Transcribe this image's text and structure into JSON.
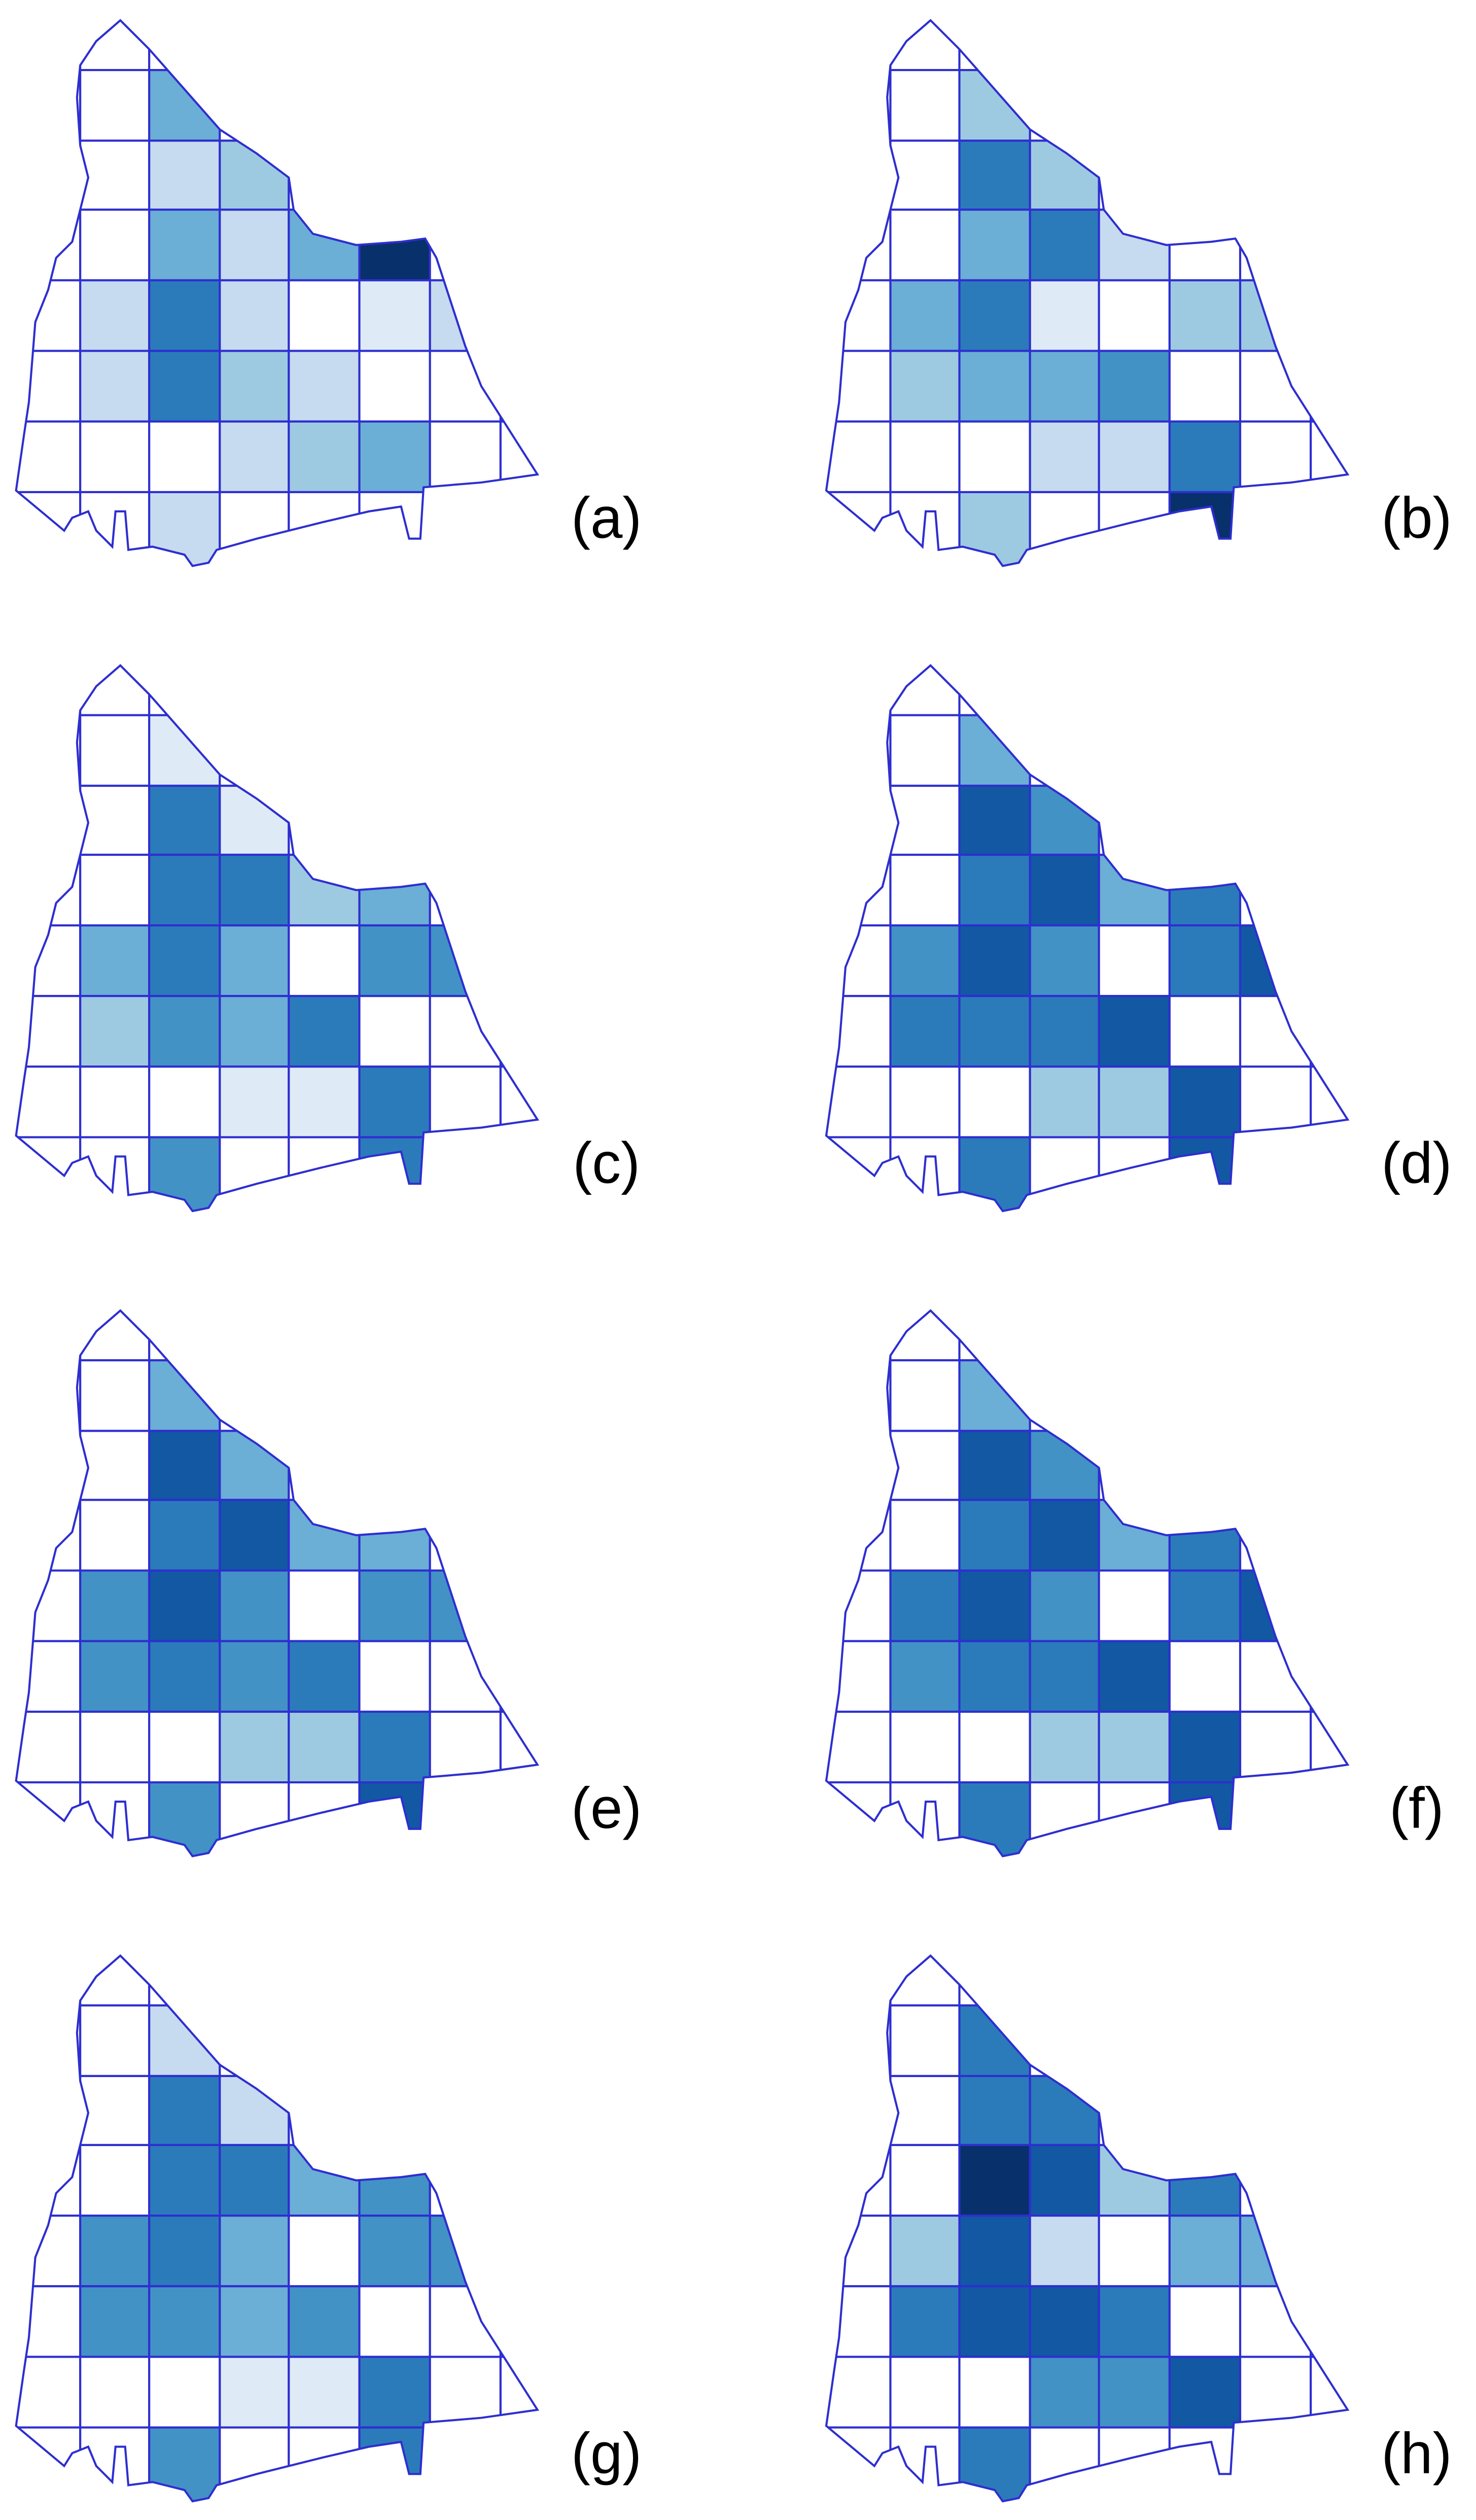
{
  "palette": [
    "#ffffff",
    "#deebf7",
    "#c6dbef",
    "#9ecae1",
    "#6baed6",
    "#4292c6",
    "#2b7bba",
    "#1258a3",
    "#08306b"
  ],
  "panels": [
    {
      "label": "(a)",
      "shades": [
        [
          0,
          0,
          0,
          0,
          0,
          0,
          0,
          0
        ],
        [
          0,
          0,
          4,
          0,
          0,
          0,
          0,
          0
        ],
        [
          0,
          0,
          2,
          3,
          0,
          0,
          0,
          0
        ],
        [
          0,
          0,
          4,
          2,
          4,
          8,
          0,
          0
        ],
        [
          0,
          2,
          6,
          2,
          0,
          1,
          2,
          0
        ],
        [
          0,
          2,
          6,
          3,
          2,
          0,
          0,
          0
        ],
        [
          0,
          0,
          0,
          2,
          3,
          4,
          0,
          0
        ],
        [
          0,
          0,
          2,
          0,
          0,
          0,
          0,
          0
        ]
      ]
    },
    {
      "label": "(b)",
      "shades": [
        [
          0,
          0,
          0,
          0,
          0,
          0,
          0,
          0
        ],
        [
          0,
          0,
          3,
          0,
          0,
          0,
          0,
          0
        ],
        [
          0,
          0,
          6,
          3,
          0,
          0,
          0,
          0
        ],
        [
          0,
          0,
          4,
          6,
          2,
          0,
          0,
          0
        ],
        [
          0,
          4,
          6,
          1,
          0,
          3,
          3,
          0
        ],
        [
          0,
          3,
          4,
          4,
          5,
          0,
          0,
          0
        ],
        [
          0,
          0,
          0,
          2,
          2,
          6,
          0,
          0
        ],
        [
          0,
          0,
          3,
          0,
          0,
          8,
          0,
          0
        ]
      ]
    },
    {
      "label": "(c)",
      "shades": [
        [
          0,
          0,
          0,
          0,
          0,
          0,
          0,
          0
        ],
        [
          0,
          0,
          1,
          0,
          0,
          0,
          0,
          0
        ],
        [
          0,
          0,
          6,
          1,
          0,
          0,
          0,
          0
        ],
        [
          0,
          0,
          6,
          6,
          3,
          4,
          0,
          0
        ],
        [
          0,
          4,
          6,
          4,
          0,
          5,
          5,
          0
        ],
        [
          0,
          3,
          5,
          4,
          6,
          0,
          0,
          0
        ],
        [
          0,
          0,
          0,
          1,
          1,
          6,
          0,
          0
        ],
        [
          0,
          0,
          5,
          0,
          0,
          6,
          0,
          0
        ]
      ]
    },
    {
      "label": "(d)",
      "shades": [
        [
          0,
          0,
          0,
          0,
          0,
          0,
          0,
          0
        ],
        [
          0,
          0,
          4,
          0,
          0,
          0,
          0,
          0
        ],
        [
          0,
          0,
          7,
          5,
          0,
          0,
          0,
          0
        ],
        [
          0,
          0,
          6,
          7,
          4,
          6,
          0,
          0
        ],
        [
          0,
          5,
          7,
          5,
          0,
          6,
          7,
          0
        ],
        [
          0,
          6,
          6,
          6,
          7,
          0,
          0,
          0
        ],
        [
          0,
          0,
          0,
          3,
          3,
          7,
          0,
          0
        ],
        [
          0,
          0,
          6,
          0,
          0,
          7,
          0,
          0
        ]
      ]
    },
    {
      "label": "(e)",
      "shades": [
        [
          0,
          0,
          0,
          0,
          0,
          0,
          0,
          0
        ],
        [
          0,
          0,
          4,
          0,
          0,
          0,
          0,
          0
        ],
        [
          0,
          0,
          7,
          4,
          0,
          0,
          0,
          0
        ],
        [
          0,
          0,
          6,
          7,
          4,
          4,
          0,
          0
        ],
        [
          0,
          5,
          7,
          5,
          0,
          5,
          5,
          0
        ],
        [
          0,
          5,
          6,
          5,
          6,
          0,
          0,
          0
        ],
        [
          0,
          0,
          0,
          3,
          3,
          6,
          0,
          0
        ],
        [
          0,
          0,
          5,
          0,
          0,
          7,
          0,
          0
        ]
      ]
    },
    {
      "label": "(f)",
      "shades": [
        [
          0,
          0,
          0,
          0,
          0,
          0,
          0,
          0
        ],
        [
          0,
          0,
          4,
          0,
          0,
          0,
          0,
          0
        ],
        [
          0,
          0,
          7,
          5,
          0,
          0,
          0,
          0
        ],
        [
          0,
          0,
          6,
          7,
          4,
          6,
          0,
          0
        ],
        [
          0,
          6,
          7,
          5,
          0,
          6,
          7,
          0
        ],
        [
          0,
          5,
          6,
          6,
          7,
          0,
          0,
          0
        ],
        [
          0,
          0,
          0,
          3,
          3,
          7,
          0,
          0
        ],
        [
          0,
          0,
          6,
          0,
          0,
          7,
          0,
          0
        ]
      ]
    },
    {
      "label": "(g)",
      "shades": [
        [
          0,
          0,
          0,
          0,
          0,
          0,
          0,
          0
        ],
        [
          0,
          0,
          2,
          0,
          0,
          0,
          0,
          0
        ],
        [
          0,
          0,
          6,
          2,
          0,
          0,
          0,
          0
        ],
        [
          0,
          0,
          6,
          6,
          4,
          5,
          0,
          0
        ],
        [
          0,
          5,
          6,
          4,
          0,
          5,
          5,
          0
        ],
        [
          0,
          5,
          5,
          4,
          5,
          0,
          0,
          0
        ],
        [
          0,
          0,
          0,
          1,
          1,
          6,
          0,
          0
        ],
        [
          0,
          0,
          5,
          0,
          0,
          6,
          0,
          0
        ]
      ]
    },
    {
      "label": "(h)",
      "shades": [
        [
          0,
          0,
          0,
          0,
          0,
          0,
          0,
          0
        ],
        [
          0,
          0,
          6,
          0,
          0,
          0,
          0,
          0
        ],
        [
          0,
          0,
          6,
          6,
          0,
          0,
          0,
          0
        ],
        [
          0,
          0,
          8,
          7,
          3,
          6,
          0,
          0
        ],
        [
          0,
          3,
          7,
          2,
          0,
          4,
          4,
          0
        ],
        [
          0,
          6,
          7,
          7,
          6,
          0,
          0,
          0
        ],
        [
          0,
          0,
          0,
          5,
          5,
          7,
          0,
          0
        ],
        [
          0,
          0,
          6,
          0,
          0,
          0,
          0,
          0
        ]
      ]
    }
  ]
}
